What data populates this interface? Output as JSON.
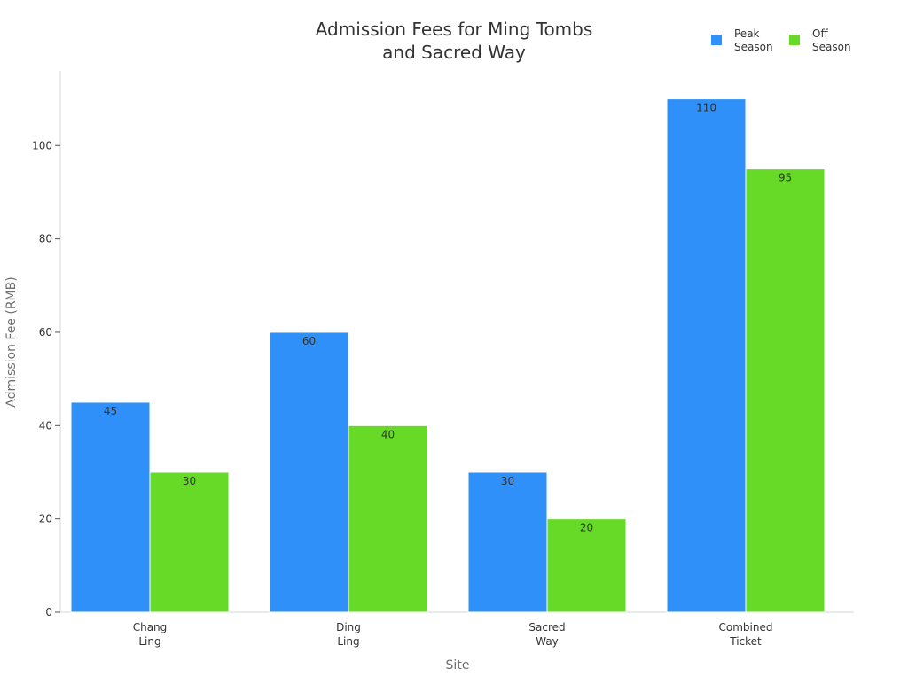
{
  "chart_data": {
    "type": "bar",
    "title": [
      "Admission Fees for Ming Tombs",
      "and Sacred Way"
    ],
    "xlabel": "Site",
    "ylabel": "Admission Fee (RMB)",
    "categories": [
      [
        "Chang",
        "Ling"
      ],
      [
        "Ding",
        "Ling"
      ],
      [
        "Sacred",
        "Way"
      ],
      [
        "Combined",
        "Ticket"
      ]
    ],
    "series": [
      {
        "name": [
          "Peak",
          "Season"
        ],
        "values": [
          45,
          60,
          30,
          110
        ],
        "color": "#2E90F8"
      },
      {
        "name": [
          "Off",
          "Season"
        ],
        "values": [
          30,
          40,
          20,
          95
        ],
        "color": "#66DA26"
      }
    ],
    "ylim": [
      0,
      116
    ],
    "yticks": [
      0,
      20,
      40,
      60,
      80,
      100
    ],
    "grid": false,
    "legend": "top-right",
    "data_labels": true
  }
}
